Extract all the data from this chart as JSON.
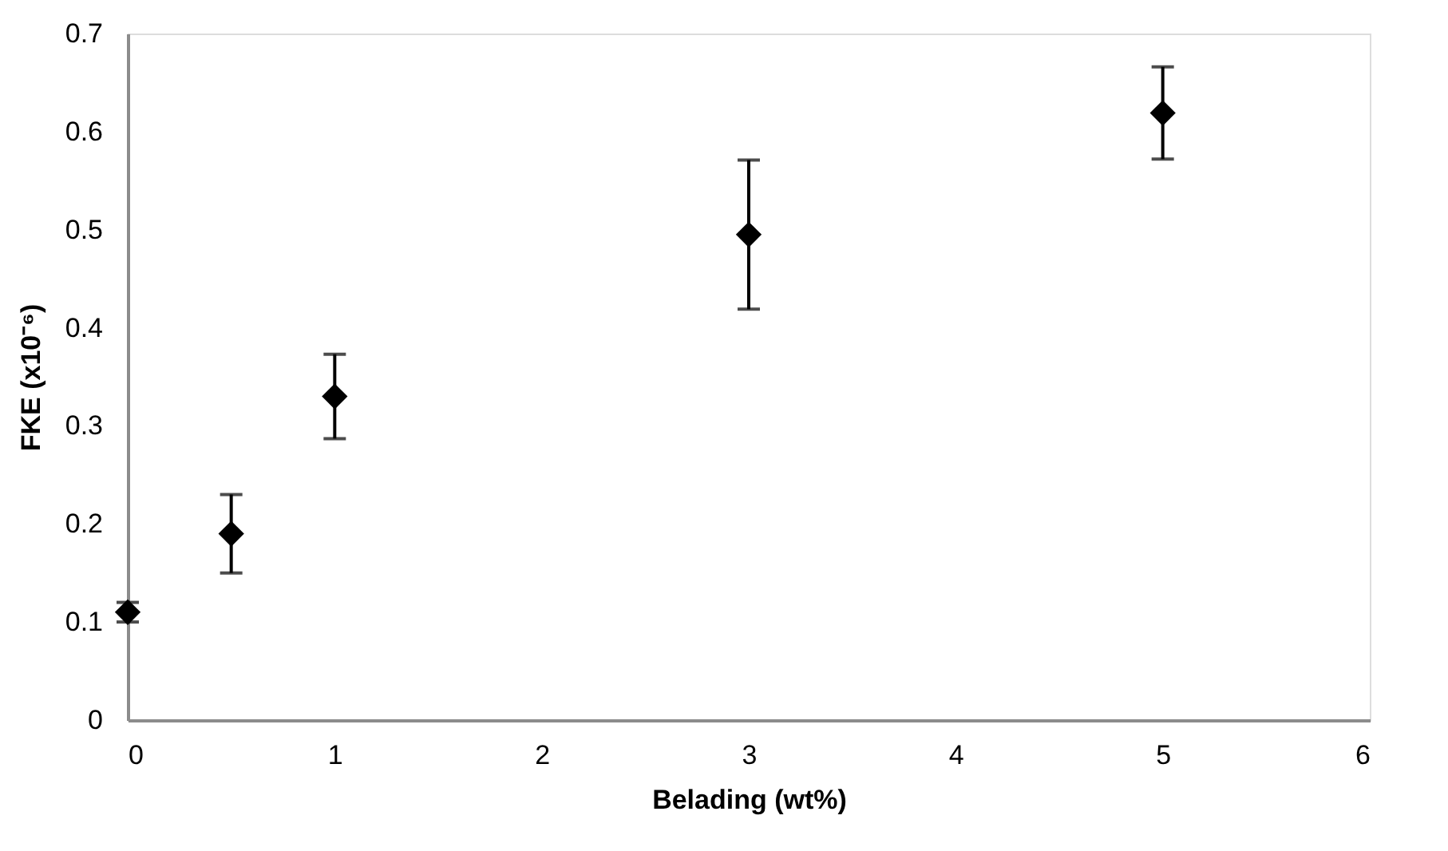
{
  "chart_data": {
    "type": "scatter",
    "xlabel": "Belading (wt%)",
    "ylabel": "FKE (x10⁻⁶)",
    "x": [
      0,
      0.5,
      1,
      3,
      5
    ],
    "series": [
      {
        "color": "#000000",
        "values": [
          0.11,
          0.19,
          0.33,
          0.495,
          0.619
        ],
        "errors": [
          0.01,
          0.04,
          0.043,
          0.076,
          0.047
        ]
      }
    ],
    "marker": "diamond",
    "xlim": [
      0,
      6
    ],
    "xticks": [
      0,
      1,
      2,
      3,
      4,
      5,
      6
    ],
    "ylim": [
      0,
      0.7
    ],
    "yticks": [
      0,
      0.1,
      0.2,
      0.3,
      0.4,
      0.5,
      0.6,
      0.7
    ],
    "grid": false,
    "legend": false
  }
}
